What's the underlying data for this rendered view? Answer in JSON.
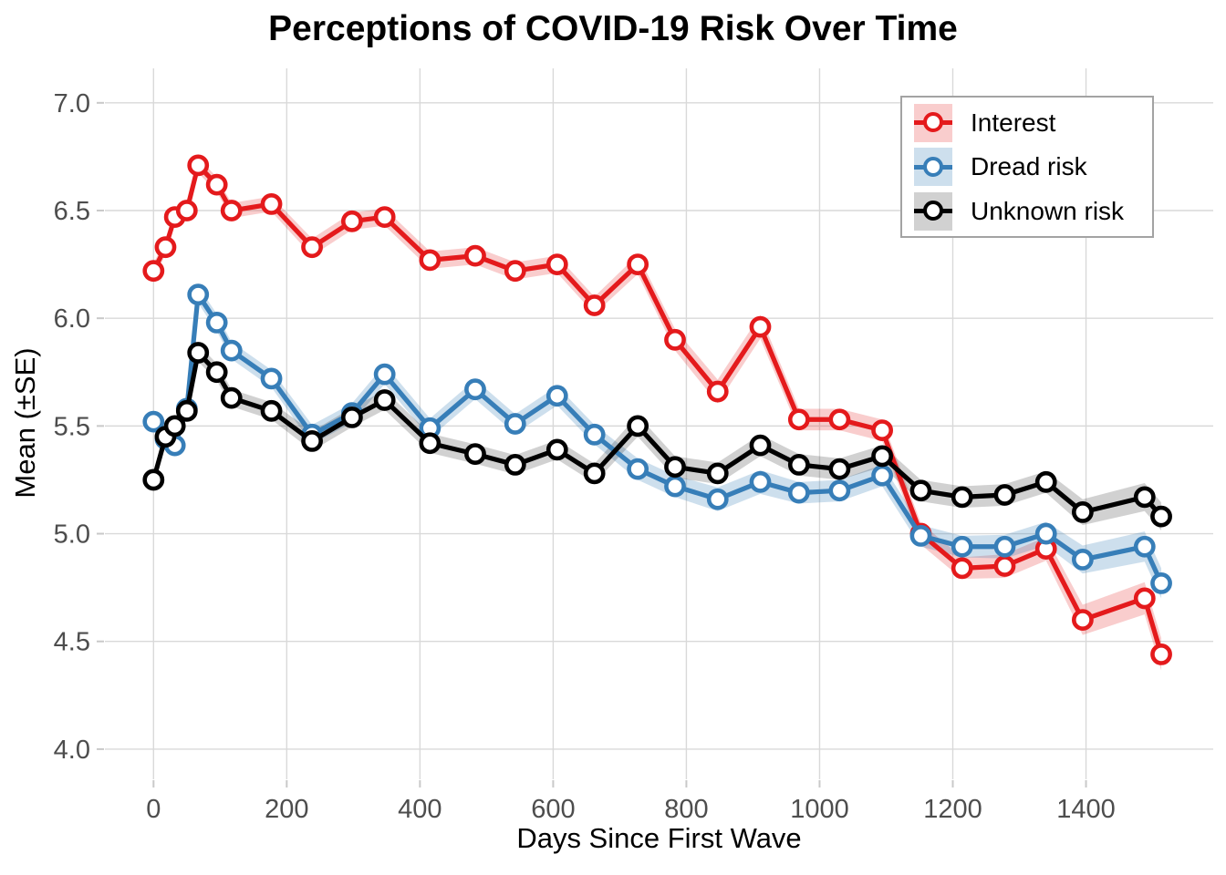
{
  "title": "Perceptions of COVID-19 Risk Over Time",
  "colors": {
    "background": "#ffffff",
    "gridline": "#d9d9d9",
    "tick_mark": "#c9c9c9",
    "tick_label": "#4d4d4d",
    "axis_title": "#000000",
    "legend_border": "#a3a3a3",
    "interest_red": "#e41a1c",
    "dread_blue": "#377eb8",
    "unknown_black": "#000000"
  },
  "legend": {
    "position": "top-right-inset",
    "items": [
      "Interest",
      "Dread risk",
      "Unknown risk"
    ]
  },
  "chart_data": {
    "type": "line",
    "title": "Perceptions of COVID-19 Risk Over Time",
    "xlabel": "Days Since First Wave",
    "ylabel": "Mean (±SE)",
    "grid": true,
    "legend_position": "top-right",
    "xlim": [
      -73,
      1591
    ],
    "ylim": [
      3.86,
      7.16
    ],
    "x_ticks": {
      "values": [
        0,
        200,
        400,
        600,
        800,
        1000,
        1200,
        1400
      ],
      "labels": [
        "0",
        "200",
        "400",
        "600",
        "800",
        "1000",
        "1200",
        "1400"
      ]
    },
    "y_ticks": {
      "values": [
        4.0,
        4.5,
        5.0,
        5.5,
        6.0,
        6.5,
        7.0
      ],
      "labels": [
        "4.0",
        "4.5",
        "5.0",
        "5.5",
        "6.0",
        "6.5",
        "7.0"
      ]
    },
    "x": [
      0,
      18,
      32,
      50,
      67,
      95,
      117,
      177,
      238,
      298,
      347,
      415,
      483,
      543,
      606,
      662,
      727,
      783,
      847,
      911,
      969,
      1030,
      1094,
      1152,
      1214,
      1278,
      1340,
      1395,
      1488,
      1513
    ],
    "series": [
      {
        "name": "Interest",
        "color": "#e41a1c",
        "ribbon_color": "rgba(228,26,28,0.22)",
        "values": [
          6.22,
          6.33,
          6.47,
          6.5,
          6.71,
          6.62,
          6.5,
          6.53,
          6.33,
          6.45,
          6.47,
          6.27,
          6.29,
          6.22,
          6.25,
          6.06,
          6.25,
          5.9,
          5.66,
          5.96,
          5.53,
          5.53,
          5.48,
          5.0,
          4.84,
          4.85,
          4.93,
          4.6,
          4.7,
          4.44
        ],
        "se": [
          0.035,
          0.035,
          0.035,
          0.035,
          0.035,
          0.035,
          0.035,
          0.035,
          0.04,
          0.04,
          0.04,
          0.04,
          0.04,
          0.04,
          0.04,
          0.04,
          0.045,
          0.05,
          0.055,
          0.055,
          0.05,
          0.05,
          0.05,
          0.05,
          0.05,
          0.055,
          0.055,
          0.07,
          0.075,
          0.075
        ]
      },
      {
        "name": "Dread risk",
        "color": "#377eb8",
        "ribbon_color": "rgba(55,126,184,0.25)",
        "values": [
          5.52,
          5.44,
          5.41,
          5.58,
          6.11,
          5.98,
          5.85,
          5.72,
          5.46,
          5.56,
          5.74,
          5.49,
          5.67,
          5.51,
          5.64,
          5.46,
          5.3,
          5.22,
          5.16,
          5.24,
          5.19,
          5.2,
          5.27,
          4.99,
          4.94,
          4.94,
          5.0,
          4.88,
          4.94,
          4.77
        ],
        "se": [
          0.04,
          0.04,
          0.04,
          0.04,
          0.04,
          0.04,
          0.04,
          0.04,
          0.045,
          0.045,
          0.045,
          0.045,
          0.045,
          0.045,
          0.045,
          0.045,
          0.05,
          0.05,
          0.055,
          0.055,
          0.05,
          0.05,
          0.05,
          0.05,
          0.05,
          0.055,
          0.055,
          0.065,
          0.07,
          0.07
        ]
      },
      {
        "name": "Unknown risk",
        "color": "#000000",
        "ribbon_color": "rgba(0,0,0,0.18)",
        "values": [
          5.25,
          5.45,
          5.5,
          5.57,
          5.84,
          5.75,
          5.63,
          5.57,
          5.43,
          5.54,
          5.62,
          5.42,
          5.37,
          5.32,
          5.39,
          5.28,
          5.5,
          5.31,
          5.28,
          5.41,
          5.32,
          5.3,
          5.36,
          5.2,
          5.17,
          5.18,
          5.24,
          5.1,
          5.17,
          5.08
        ],
        "se": [
          0.04,
          0.04,
          0.04,
          0.04,
          0.04,
          0.04,
          0.04,
          0.04,
          0.045,
          0.045,
          0.045,
          0.045,
          0.045,
          0.045,
          0.045,
          0.045,
          0.05,
          0.05,
          0.05,
          0.05,
          0.05,
          0.05,
          0.05,
          0.05,
          0.05,
          0.05,
          0.05,
          0.06,
          0.065,
          0.065
        ]
      }
    ]
  }
}
